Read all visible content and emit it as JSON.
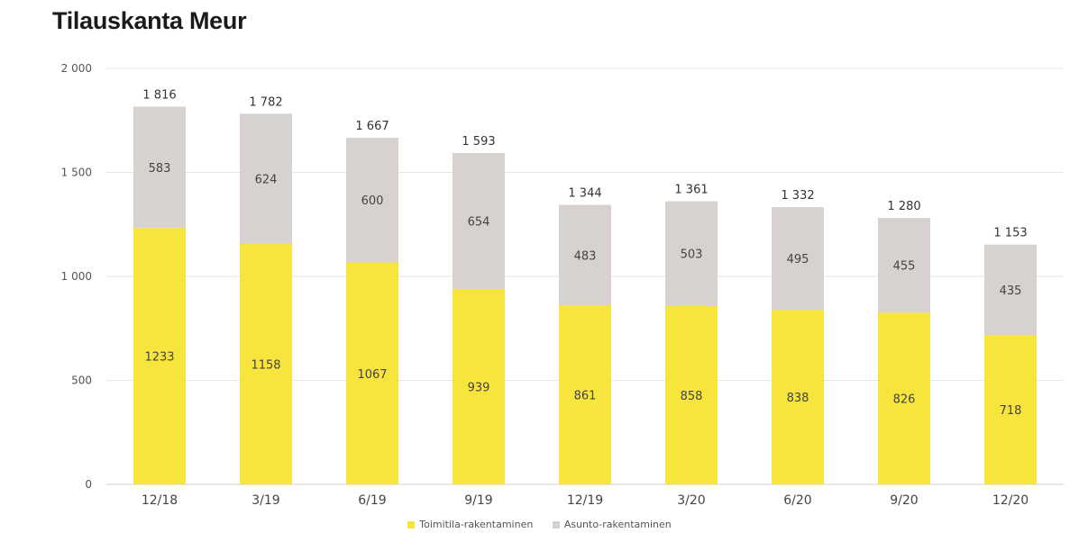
{
  "chart_data": {
    "type": "bar",
    "stacked": true,
    "title": "Tilauskanta Meur",
    "categories": [
      "12/18",
      "3/19",
      "6/19",
      "9/19",
      "12/19",
      "3/20",
      "6/20",
      "9/20",
      "12/20"
    ],
    "series": [
      {
        "name": "Toimitila-rakentaminen",
        "color": "#f7e43c",
        "values": [
          1233,
          1158,
          1067,
          939,
          861,
          858,
          838,
          826,
          718
        ]
      },
      {
        "name": "Asunto-rakentaminen",
        "color": "#d7d2cf",
        "values": [
          583,
          624,
          600,
          654,
          483,
          503,
          495,
          455,
          435
        ]
      }
    ],
    "totals": [
      1816,
      1782,
      1667,
      1593,
      1344,
      1361,
      1332,
      1280,
      1153
    ],
    "total_labels": [
      "1 816",
      "1 782",
      "1 667",
      "1 593",
      "1 344",
      "1 361",
      "1 332",
      "1 280",
      "1 153"
    ],
    "ylim": [
      0,
      2000
    ],
    "yticks": [
      0,
      500,
      1000,
      1500,
      2000
    ],
    "ytick_labels": [
      "0",
      "500",
      "1 000",
      "1 500",
      "2 000"
    ],
    "grid": true,
    "legend_position": "bottom"
  }
}
